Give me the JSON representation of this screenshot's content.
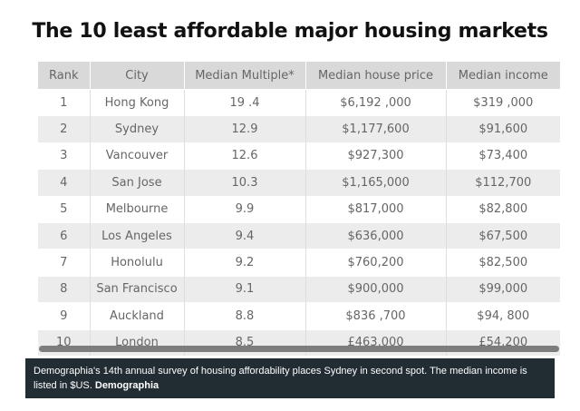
{
  "title": "The 10 least affordable major housing markets",
  "table": {
    "headers": [
      "Rank",
      "City",
      "Median Multiple*",
      "Median house price",
      "Median income"
    ],
    "rows": [
      [
        "1",
        "Hong Kong",
        "19 .4",
        "$6,192 ,000",
        "$319 ,000"
      ],
      [
        "2",
        "Sydney",
        "12.9",
        "$1,177,600",
        "$91,600"
      ],
      [
        "3",
        "Vancouver",
        "12.6",
        "$927,300",
        "$73,400"
      ],
      [
        "4",
        "San Jose",
        "10.3",
        "$1,165,000",
        "$112,700"
      ],
      [
        "5",
        "Melbourne",
        "9.9",
        "$817,000",
        "$82,800"
      ],
      [
        "6",
        "Los Angeles",
        "9.4",
        "$636,000",
        "$67,500"
      ],
      [
        "7",
        "Honolulu",
        "9.2",
        "$760,200",
        "$82,500"
      ],
      [
        "8",
        "San Francisco",
        "9.1",
        "$900,000",
        "$99,000"
      ],
      [
        "9",
        "Auckland",
        "8.8",
        "$836 ,700",
        "$94, 800"
      ],
      [
        "10",
        "London",
        "8.5",
        "£463,000",
        "£54,200"
      ]
    ]
  },
  "caption": {
    "text": "Demographia's 14th annual survey of housing affordability places Sydney in second spot. The median income is listed in $US.",
    "credit": "Demographia"
  },
  "colors": {
    "header_bg": "#d9d9d9",
    "row_alt_bg": "#ececec",
    "caption_bg": "#222c33",
    "text": "#666666"
  }
}
